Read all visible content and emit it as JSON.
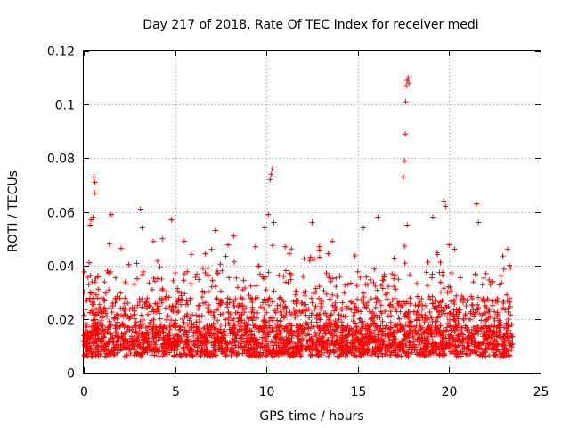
{
  "chart_data": {
    "type": "scatter",
    "title": "Day 217 of 2018, Rate Of TEC Index for receiver medi",
    "xlabel": "GPS time / hours",
    "ylabel": "ROTI / TECUs",
    "xlim": [
      0,
      25
    ],
    "ylim": [
      0,
      0.12
    ],
    "xticks": [
      0,
      5,
      10,
      15,
      20,
      25
    ],
    "xtick_labels": [
      "0",
      "5",
      "10",
      "15",
      "20",
      "25"
    ],
    "yticks": [
      0,
      0.02,
      0.04,
      0.06,
      0.08,
      0.1,
      0.12
    ],
    "ytick_labels": [
      "0",
      "0.02",
      "0.04",
      "0.06",
      "0.08",
      "0.1",
      "0.12"
    ],
    "grid": true,
    "marker": "+",
    "marker_color": "#ff0000",
    "x_range_of_data": [
      0,
      23.5
    ],
    "series": [
      {
        "name": "ROTI",
        "note": "dense cloud mostly between 0.005 and 0.035; representative peak points listed",
        "x": [
          0.3,
          0.35,
          0.4,
          0.55,
          0.6,
          0.6,
          0.5,
          1.4,
          1.5,
          3.1,
          3.2,
          3.8,
          4.3,
          4.8,
          5.5,
          7.2,
          8.2,
          9.4,
          9.9,
          10.1,
          10.2,
          10.25,
          10.3,
          10.4,
          12.5,
          12.9,
          13.6,
          15.3,
          16.1,
          17.5,
          17.55,
          17.6,
          17.62,
          17.65,
          17.7,
          17.75,
          17.8,
          17.7,
          19.1,
          19.7,
          19.8,
          21.5,
          21.6,
          23.2,
          23.3
        ],
        "y": [
          0.041,
          0.055,
          0.057,
          0.073,
          0.071,
          0.067,
          0.058,
          0.048,
          0.059,
          0.061,
          0.054,
          0.049,
          0.05,
          0.057,
          0.049,
          0.053,
          0.051,
          0.047,
          0.054,
          0.059,
          0.072,
          0.074,
          0.076,
          0.056,
          0.056,
          0.047,
          0.049,
          0.054,
          0.058,
          0.073,
          0.079,
          0.089,
          0.101,
          0.107,
          0.109,
          0.11,
          0.108,
          0.055,
          0.058,
          0.064,
          0.062,
          0.063,
          0.056,
          0.046,
          0.04
        ]
      }
    ]
  }
}
